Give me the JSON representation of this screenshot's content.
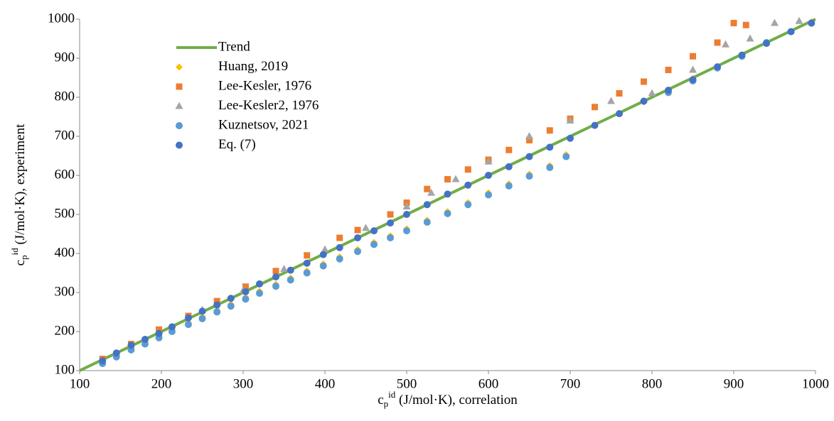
{
  "chart_data": {
    "type": "scatter",
    "xlabel": {
      "base": "c",
      "sub": "p",
      "sup": "id",
      "text": " (J/mol·K), correlation"
    },
    "ylabel": {
      "base": "c",
      "sub": "p",
      "sup": "id",
      "text": " (J/mol·K), experiment"
    },
    "xlim": [
      100,
      1000
    ],
    "ylim": [
      100,
      1000
    ],
    "xticks": [
      100,
      200,
      300,
      400,
      500,
      600,
      700,
      800,
      900,
      1000
    ],
    "yticks": [
      100,
      200,
      300,
      400,
      500,
      600,
      700,
      800,
      900,
      1000
    ],
    "legend": "upper left",
    "series": [
      {
        "name": "Trend",
        "color": "#70ad47",
        "marker": "line",
        "x": [
          100,
          1000
        ],
        "values": [
          100,
          1000
        ]
      },
      {
        "name": "Huang, 2019",
        "color": "#ffc000",
        "marker": "diamond",
        "x": [
          128,
          145,
          163,
          180,
          197,
          213,
          233,
          250,
          268,
          285,
          303,
          320,
          340,
          358,
          378,
          398,
          418,
          440,
          460,
          480,
          500,
          525,
          550,
          575,
          600,
          625,
          650,
          675,
          695,
          760,
          790,
          820,
          850,
          880,
          910,
          940,
          970,
          995
        ],
        "values": [
          123,
          140,
          158,
          173,
          189,
          205,
          223,
          238,
          255,
          270,
          288,
          303,
          321,
          337,
          355,
          373,
          391,
          410,
          428,
          445,
          463,
          485,
          507,
          530,
          555,
          578,
          603,
          625,
          653,
          758,
          788,
          818,
          848,
          878,
          908,
          938,
          968,
          993
        ]
      },
      {
        "name": "Lee-Kesler, 1976",
        "color": "#ed7d31",
        "marker": "square",
        "x": [
          128,
          163,
          197,
          233,
          268,
          303,
          340,
          378,
          418,
          440,
          480,
          500,
          525,
          550,
          575,
          600,
          625,
          650,
          675,
          700,
          730,
          760,
          790,
          820,
          850,
          880,
          900,
          915
        ],
        "values": [
          130,
          168,
          205,
          240,
          278,
          315,
          355,
          395,
          440,
          460,
          500,
          530,
          565,
          590,
          615,
          640,
          665,
          690,
          715,
          745,
          775,
          810,
          840,
          870,
          905,
          940,
          990,
          985
        ]
      },
      {
        "name": "Lee-Kesler2, 1976",
        "color": "#a5a5a5",
        "marker": "triangle",
        "x": [
          250,
          300,
          350,
          400,
          450,
          500,
          530,
          560,
          600,
          650,
          700,
          750,
          800,
          850,
          890,
          920,
          950,
          980
        ],
        "values": [
          255,
          305,
          360,
          410,
          465,
          520,
          555,
          590,
          635,
          700,
          740,
          790,
          810,
          870,
          935,
          950,
          990,
          995
        ]
      },
      {
        "name": "Kuznetsov, 2021",
        "color": "#5b9bd5",
        "marker": "circle",
        "x": [
          128,
          145,
          163,
          180,
          197,
          213,
          233,
          250,
          268,
          285,
          303,
          320,
          340,
          358,
          378,
          398,
          418,
          440,
          460,
          480,
          500,
          525,
          550,
          575,
          600,
          625,
          650,
          675,
          695,
          820,
          850,
          880,
          910,
          940,
          970,
          995
        ],
        "values": [
          118,
          135,
          153,
          168,
          184,
          200,
          218,
          233,
          250,
          265,
          283,
          298,
          316,
          332,
          350,
          368,
          386,
          405,
          423,
          440,
          458,
          480,
          502,
          525,
          550,
          573,
          598,
          620,
          648,
          812,
          842,
          875,
          905,
          940,
          968,
          990
        ]
      },
      {
        "name": "Eq. (7)",
        "color": "#4472c4",
        "marker": "circle",
        "x": [
          128,
          145,
          163,
          180,
          197,
          213,
          233,
          250,
          268,
          285,
          303,
          320,
          340,
          358,
          378,
          398,
          418,
          440,
          460,
          480,
          500,
          525,
          550,
          575,
          600,
          625,
          650,
          675,
          700,
          730,
          760,
          790,
          820,
          850,
          880,
          910,
          940,
          970,
          995
        ],
        "values": [
          125,
          145,
          165,
          180,
          195,
          212,
          235,
          252,
          268,
          285,
          302,
          322,
          340,
          357,
          375,
          397,
          415,
          440,
          458,
          478,
          500,
          525,
          552,
          575,
          600,
          622,
          648,
          672,
          695,
          728,
          758,
          790,
          818,
          845,
          878,
          908,
          938,
          968,
          990
        ]
      }
    ]
  }
}
